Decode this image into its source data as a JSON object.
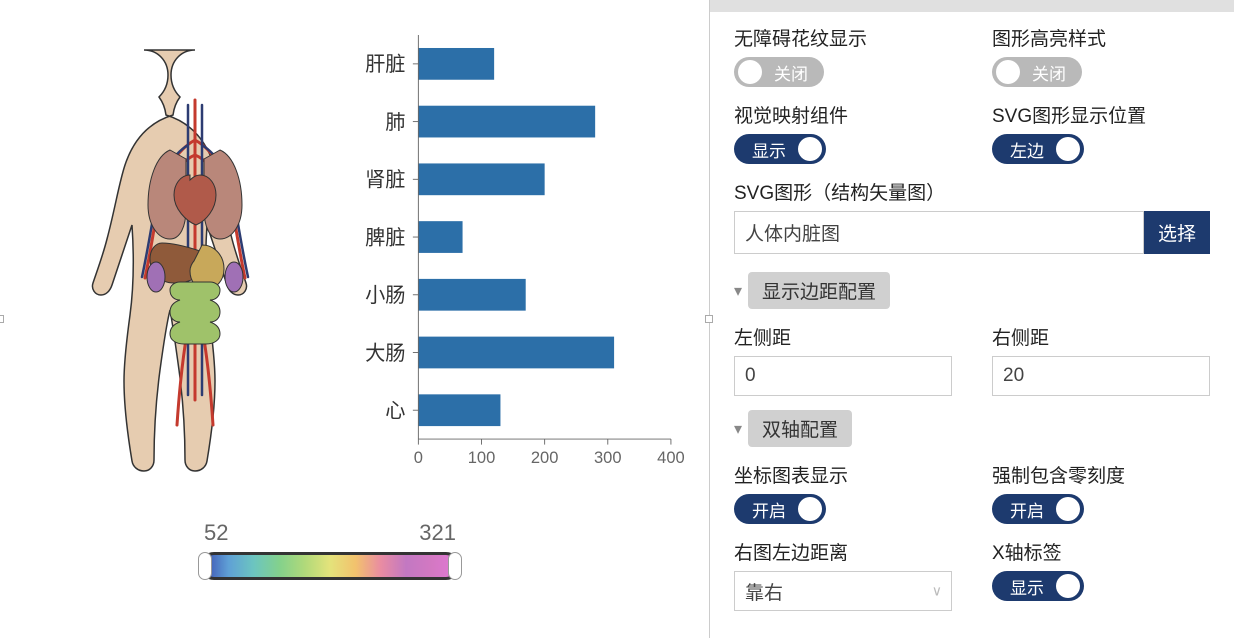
{
  "chart": {
    "type": "bar-horizontal",
    "categories": [
      "肝脏",
      "肺",
      "肾脏",
      "脾脏",
      "小肠",
      "大肠",
      "心"
    ],
    "values": [
      120,
      280,
      200,
      70,
      170,
      310,
      130
    ],
    "bar_color": "#2c6fa8",
    "xlim": [
      0,
      400
    ],
    "xtick_step": 100,
    "xticks": [
      "0",
      "100",
      "200",
      "300",
      "400"
    ],
    "axis_color": "#666666",
    "label_fontsize": 22,
    "tick_fontsize": 18,
    "bar_height_ratio": 0.55,
    "background_color": "#ffffff"
  },
  "colormap": {
    "min_label": "52",
    "max_label": "321",
    "gradient_stops": [
      "#3b4db0",
      "#5fa0d6",
      "#6cc5c0",
      "#83d18c",
      "#b0d97a",
      "#e4e37b",
      "#f2c26d",
      "#e98ca2",
      "#c278c2",
      "#d378c2",
      "#e078d5"
    ],
    "border_color": "#333333"
  },
  "body_illustration": {
    "name": "人体内脏图",
    "palette": {
      "skin": "#e6ccb0",
      "artery": "#c43a2e",
      "vein": "#2d3c72",
      "lungs": "#b9877a",
      "heart": "#b05a4a",
      "liver": "#8f5a3a",
      "kidney": "#a070b5",
      "intestine": "#9fc26a",
      "stomach": "#c8a85a"
    }
  },
  "panel": {
    "opt_accessibility_label": "无障碍花纹显示",
    "opt_accessibility_state": "关闭",
    "opt_highlight_label": "图形高亮样式",
    "opt_highlight_state": "关闭",
    "opt_visualmap_label": "视觉映射组件",
    "opt_visualmap_state": "显示",
    "opt_svgpos_label": "SVG图形显示位置",
    "opt_svgpos_state": "左边",
    "svg_section_label": "SVG图形（结构矢量图）",
    "svg_selected": "人体内脏图",
    "svg_select_btn": "选择",
    "section_margin": "显示边距配置",
    "margin_left_label": "左侧距",
    "margin_left_value": "0",
    "margin_right_label": "右侧距",
    "margin_right_value": "20",
    "section_dualaxis": "双轴配置",
    "dual_show_label": "坐标图表显示",
    "dual_show_state": "开启",
    "dual_zero_label": "强制包含零刻度",
    "dual_zero_state": "开启",
    "dual_leftdist_label": "右图左边距离",
    "dual_leftdist_value": "靠右",
    "dual_xlabel_label": "X轴标签",
    "dual_xlabel_state": "显示"
  },
  "colors": {
    "toggle_on": "#1d3a6e",
    "toggle_off": "#b9b9b9",
    "section_pill": "#d0d0d0",
    "panel_topbar": "#e0e0e0"
  }
}
